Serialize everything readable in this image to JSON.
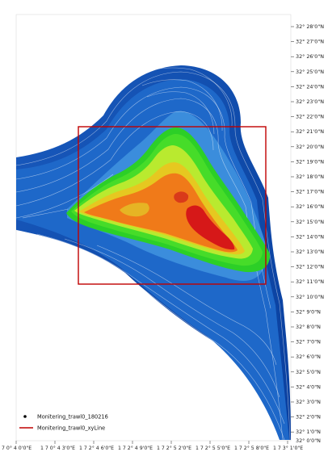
{
  "map": {
    "latitude_labels": [
      "32° 28'0\"N",
      "32° 27'0\"N",
      "32° 26'0\"N",
      "32° 25'0\"N",
      "32° 24'0\"N",
      "32° 23'0\"N",
      "32° 22'0\"N",
      "32° 21'0\"N",
      "32° 20'0\"N",
      "32° 19'0\"N",
      "32° 18'0\"N",
      "32° 17'0\"N",
      "32° 16'0\"N",
      "32° 15'0\"N",
      "32° 14'0\"N",
      "32° 13'0\"N",
      "32° 12'0\"N",
      "32° 11'0\"N",
      "32° 10'0\"N",
      "32° 9'0\"N",
      "32° 8'0\"N",
      "32° 7'0\"N",
      "32° 6'0\"N",
      "32° 5'0\"N",
      "32° 4'0\"N",
      "32° 3'0\"N",
      "32° 2'0\"N",
      "32° 1'0\"N",
      "32° 0'0\"N"
    ],
    "longitude_labels": [
      "7 0° 4 0'0\"E",
      "1 7 0° 4 3'0\"E",
      "1 7 2° 4 6'0\"E",
      "1 7 2° 4 9'0\"E",
      "1 7 2° 5 2'0\"E",
      "1 7 2° 5 5'0\"E",
      "1 7 2° 5 8'0\"E",
      "1 7 3° 1'0\"E"
    ],
    "legend": [
      {
        "label": "Monitering_trawl0_180216",
        "symbol": "point",
        "color": "#000000"
      },
      {
        "label": "Monitering_trawl0_xyLine",
        "symbol": "line",
        "color": "#c00000"
      }
    ],
    "colors": {
      "deep_blue": "#0a3f9f",
      "mid_blue": "#1f6fd0",
      "light_blue": "#57a7e6",
      "green": "#33d426",
      "lime": "#b7ea2e",
      "orange": "#f07a19",
      "red": "#d61818",
      "study_box": "#c00000"
    }
  }
}
